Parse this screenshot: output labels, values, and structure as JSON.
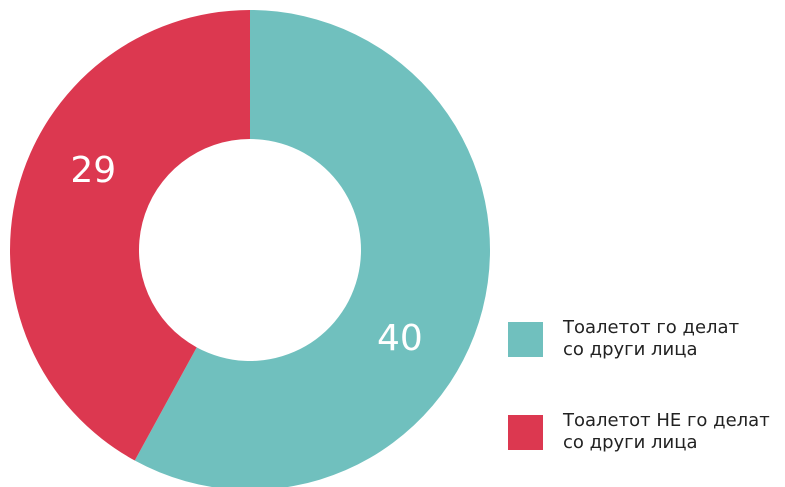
{
  "chart_data": {
    "type": "donut",
    "series": [
      {
        "name": "Тоалетот го делат\nсо други лица",
        "color": "#70c0be",
        "values": [
          40
        ]
      },
      {
        "name": "Тоалетот НЕ го делат\nсо други лица",
        "color": "#dc3850",
        "values": [
          29
        ]
      }
    ]
  }
}
